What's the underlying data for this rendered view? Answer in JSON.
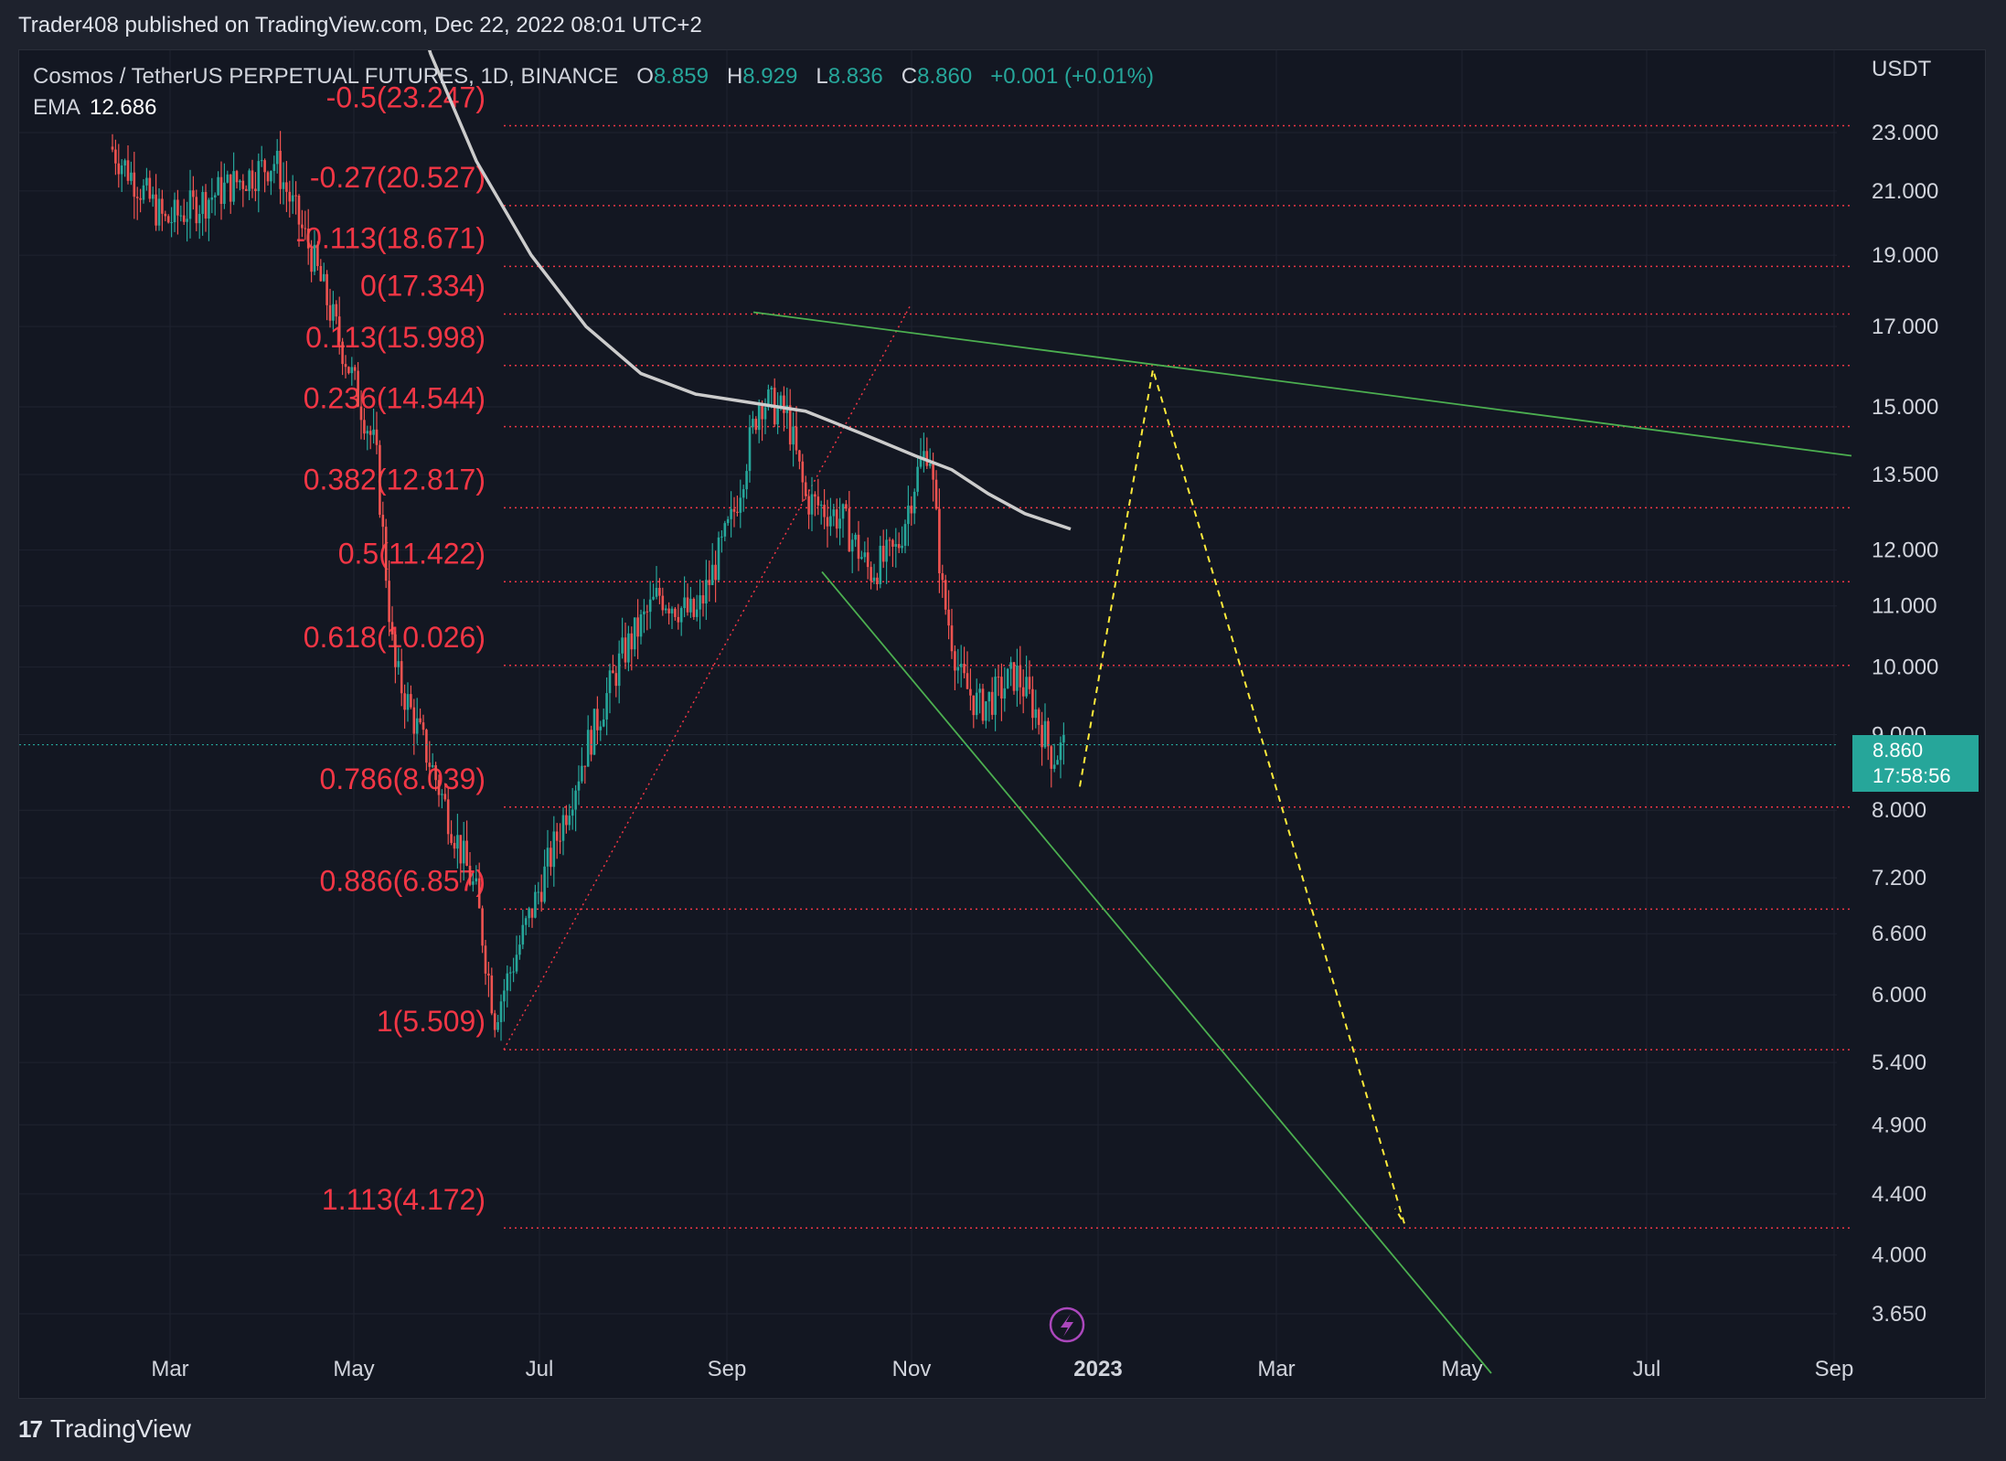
{
  "header": {
    "publisher_line": "Trader408 published on TradingView.com, Dec 22, 2022 08:01 UTC+2"
  },
  "legend": {
    "symbol": "Cosmos / TetherUS PERPETUAL FUTURES, 1D, BINANCE",
    "o_label": "O",
    "o_value": "8.859",
    "h_label": "H",
    "h_value": "8.929",
    "l_label": "L",
    "l_value": "8.836",
    "c_label": "C",
    "c_value": "8.860",
    "change": "+0.001 (+0.01%)",
    "ema_label": "EMA",
    "ema_value": "12.686"
  },
  "price_tag": {
    "price": "8.860",
    "countdown": "17:58:56"
  },
  "footer": {
    "brand": "TradingView"
  },
  "colors": {
    "up": "#26a69a",
    "down": "#ef5350",
    "fib": "#f23645",
    "trend": "#4caf50",
    "projection": "#ffeb3b",
    "ema": "#cccccc",
    "background": "#131722"
  },
  "chart_data": {
    "type": "candlestick",
    "y_axis_unit": "USDT",
    "y_scale": "log",
    "y_ticks": [
      "23.000",
      "21.000",
      "19.000",
      "17.000",
      "15.000",
      "13.500",
      "12.000",
      "11.000",
      "10.000",
      "9.000",
      "8.000",
      "7.200",
      "6.600",
      "6.000",
      "5.400",
      "4.900",
      "4.400",
      "4.000",
      "3.650"
    ],
    "x_ticks": [
      "Mar",
      "May",
      "Jul",
      "Sep",
      "Nov",
      "2023",
      "Mar",
      "May",
      "Jul",
      "Sep"
    ],
    "fib_levels": [
      {
        "label": "-0.5(23.247)",
        "price": 23.247
      },
      {
        "label": "-0.27(20.527)",
        "price": 20.527
      },
      {
        "label": "-0.113(18.671)",
        "price": 18.671
      },
      {
        "label": "0(17.334)",
        "price": 17.334
      },
      {
        "label": "0.113(15.998)",
        "price": 15.998
      },
      {
        "label": "0.236(14.544)",
        "price": 14.544
      },
      {
        "label": "0.382(12.817)",
        "price": 12.817
      },
      {
        "label": "0.5(11.422)",
        "price": 11.422
      },
      {
        "label": "0.618(10.026)",
        "price": 10.026
      },
      {
        "label": "0.786(8.039)",
        "price": 8.039
      },
      {
        "label": "0.886(6.857)",
        "price": 6.857
      },
      {
        "label": "1(5.509)",
        "price": 5.509
      },
      {
        "label": "1.113(4.172)",
        "price": 4.172
      }
    ],
    "last_price": 8.86,
    "ema_value": 12.686
  }
}
